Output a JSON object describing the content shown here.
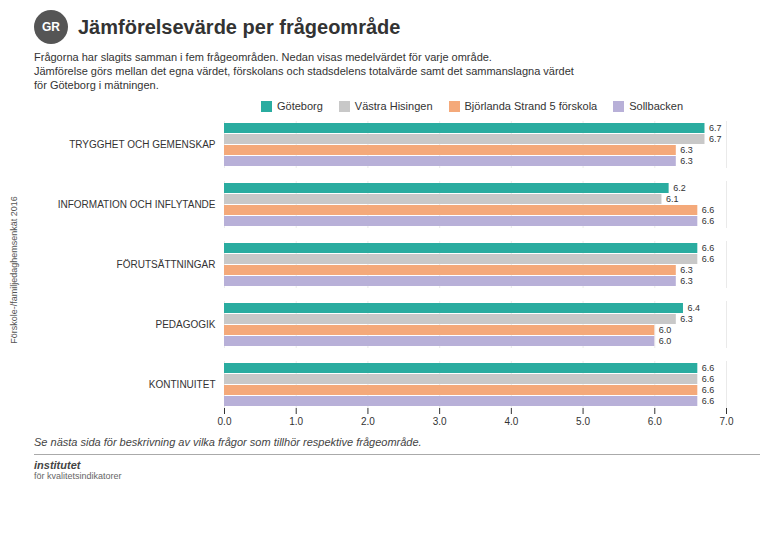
{
  "chart_data": {
    "type": "bar",
    "orientation": "horizontal",
    "title": "Jämförelsevärde per frågeområde",
    "subtitle": [
      "Frågorna har slagits samman i fem frågeområden. Nedan visas medelvärdet för varje område.",
      "Jämförelse görs mellan det egna värdet, förskolans och stadsdelens totalvärde samt det sammanslagna värdet",
      "för Göteborg i mätningen."
    ],
    "annotations": [
      "Se nästa sida för beskrivning av vilka frågor som tillhör respektive frågeområde.",
      "Förskole-/familjedaghemsenkät 2016",
      "GR",
      "institutet",
      "för kvalitetsindikatorer"
    ],
    "categories": [
      "TRYGGHET OCH GEMENSKAP",
      "INFORMATION OCH INFLYTANDE",
      "FÖRUTSÄTTNINGAR",
      "PEDAGOGIK",
      "KONTINUITET"
    ],
    "series": [
      {
        "name": "Göteborg",
        "color": "#2aaca0",
        "values": [
          6.7,
          6.2,
          6.6,
          6.4,
          6.6
        ],
        "value_labels": [
          "6.7",
          "6.2",
          "6.6",
          "6.4",
          "6.6"
        ]
      },
      {
        "name": "Västra Hisingen",
        "color": "#c8c8c8",
        "values": [
          6.7,
          6.1,
          6.6,
          6.3,
          6.6
        ],
        "value_labels": [
          "6.7",
          "6.1",
          "6.6",
          "6.3",
          "6.6"
        ]
      },
      {
        "name": "Björlanda Strand 5 förskola",
        "color": "#f4a97a",
        "values": [
          6.3,
          6.6,
          6.3,
          6.0,
          6.6
        ],
        "value_labels": [
          "6.3",
          "6.6",
          "6.3",
          "6.0",
          "6.6"
        ]
      },
      {
        "name": "Sollbacken",
        "color": "#b8b0d8",
        "values": [
          6.3,
          6.6,
          6.3,
          6.0,
          6.6
        ],
        "value_labels": [
          "6.3",
          "6.6",
          "6.3",
          "6.0",
          "6.6"
        ]
      }
    ],
    "xlim": [
      0,
      7
    ],
    "xticks": [
      {
        "value": 0,
        "label": "0.0"
      },
      {
        "value": 1,
        "label": "1.0"
      },
      {
        "value": 2,
        "label": "2.0"
      },
      {
        "value": 3,
        "label": "3.0"
      },
      {
        "value": 4,
        "label": "4.0"
      },
      {
        "value": 5,
        "label": "5.0"
      },
      {
        "value": 6,
        "label": "6.0"
      },
      {
        "value": 7,
        "label": "7.0"
      }
    ],
    "grid": true,
    "legend": "top",
    "data_labels": true
  }
}
